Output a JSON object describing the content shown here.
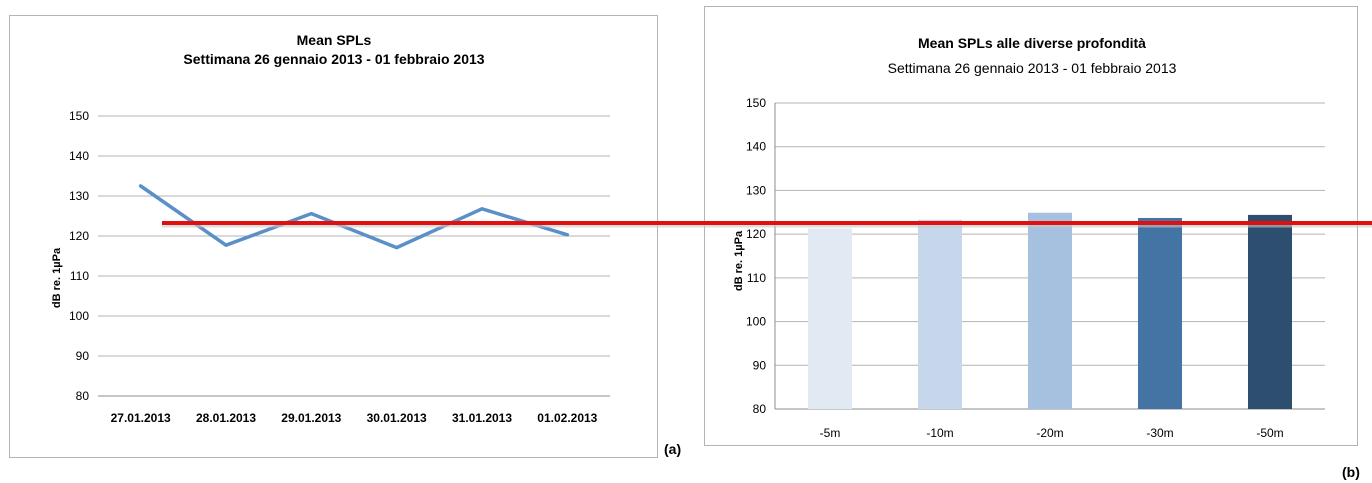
{
  "chart_data": [
    {
      "type": "line",
      "title": "Mean SPLs",
      "subtitle": "Settimana 26 gennaio 2013 - 01 febbraio 2013",
      "xlabel": "",
      "ylabel": "dB re. 1µPa",
      "categories": [
        "27.01.2013",
        "28.01.2013",
        "29.01.2013",
        "30.01.2013",
        "31.01.2013",
        "01.02.2013"
      ],
      "values": [
        132.5,
        117.7,
        125.6,
        117.1,
        126.8,
        120.3
      ],
      "ylim": [
        80,
        150
      ],
      "yticks": [
        80,
        90,
        100,
        110,
        120,
        130,
        140,
        150
      ],
      "grid": true,
      "line_color": "#5b8fc7"
    },
    {
      "type": "bar",
      "title": "Mean SPLs alle diverse profondità",
      "subtitle": "Settimana 26 gennaio 2013 - 01 febbraio 2013",
      "xlabel": "",
      "ylabel": "dB re. 1µPa",
      "categories": [
        "-5m",
        "-10m",
        "-20m",
        "-30m",
        "-50m"
      ],
      "values": [
        121.3,
        123.3,
        124.9,
        123.7,
        124.4
      ],
      "colors": [
        "#e1e9f3",
        "#c6d7eb",
        "#a6c0df",
        "#4474a4",
        "#2e4e6f"
      ],
      "ylim": [
        80,
        150
      ],
      "yticks": [
        80,
        90,
        100,
        110,
        120,
        130,
        140,
        150
      ],
      "grid": true
    }
  ],
  "panel_labels": {
    "a": "(a)",
    "b": "(b)"
  },
  "reference_line": {
    "value": 122,
    "color": "#e01010"
  }
}
